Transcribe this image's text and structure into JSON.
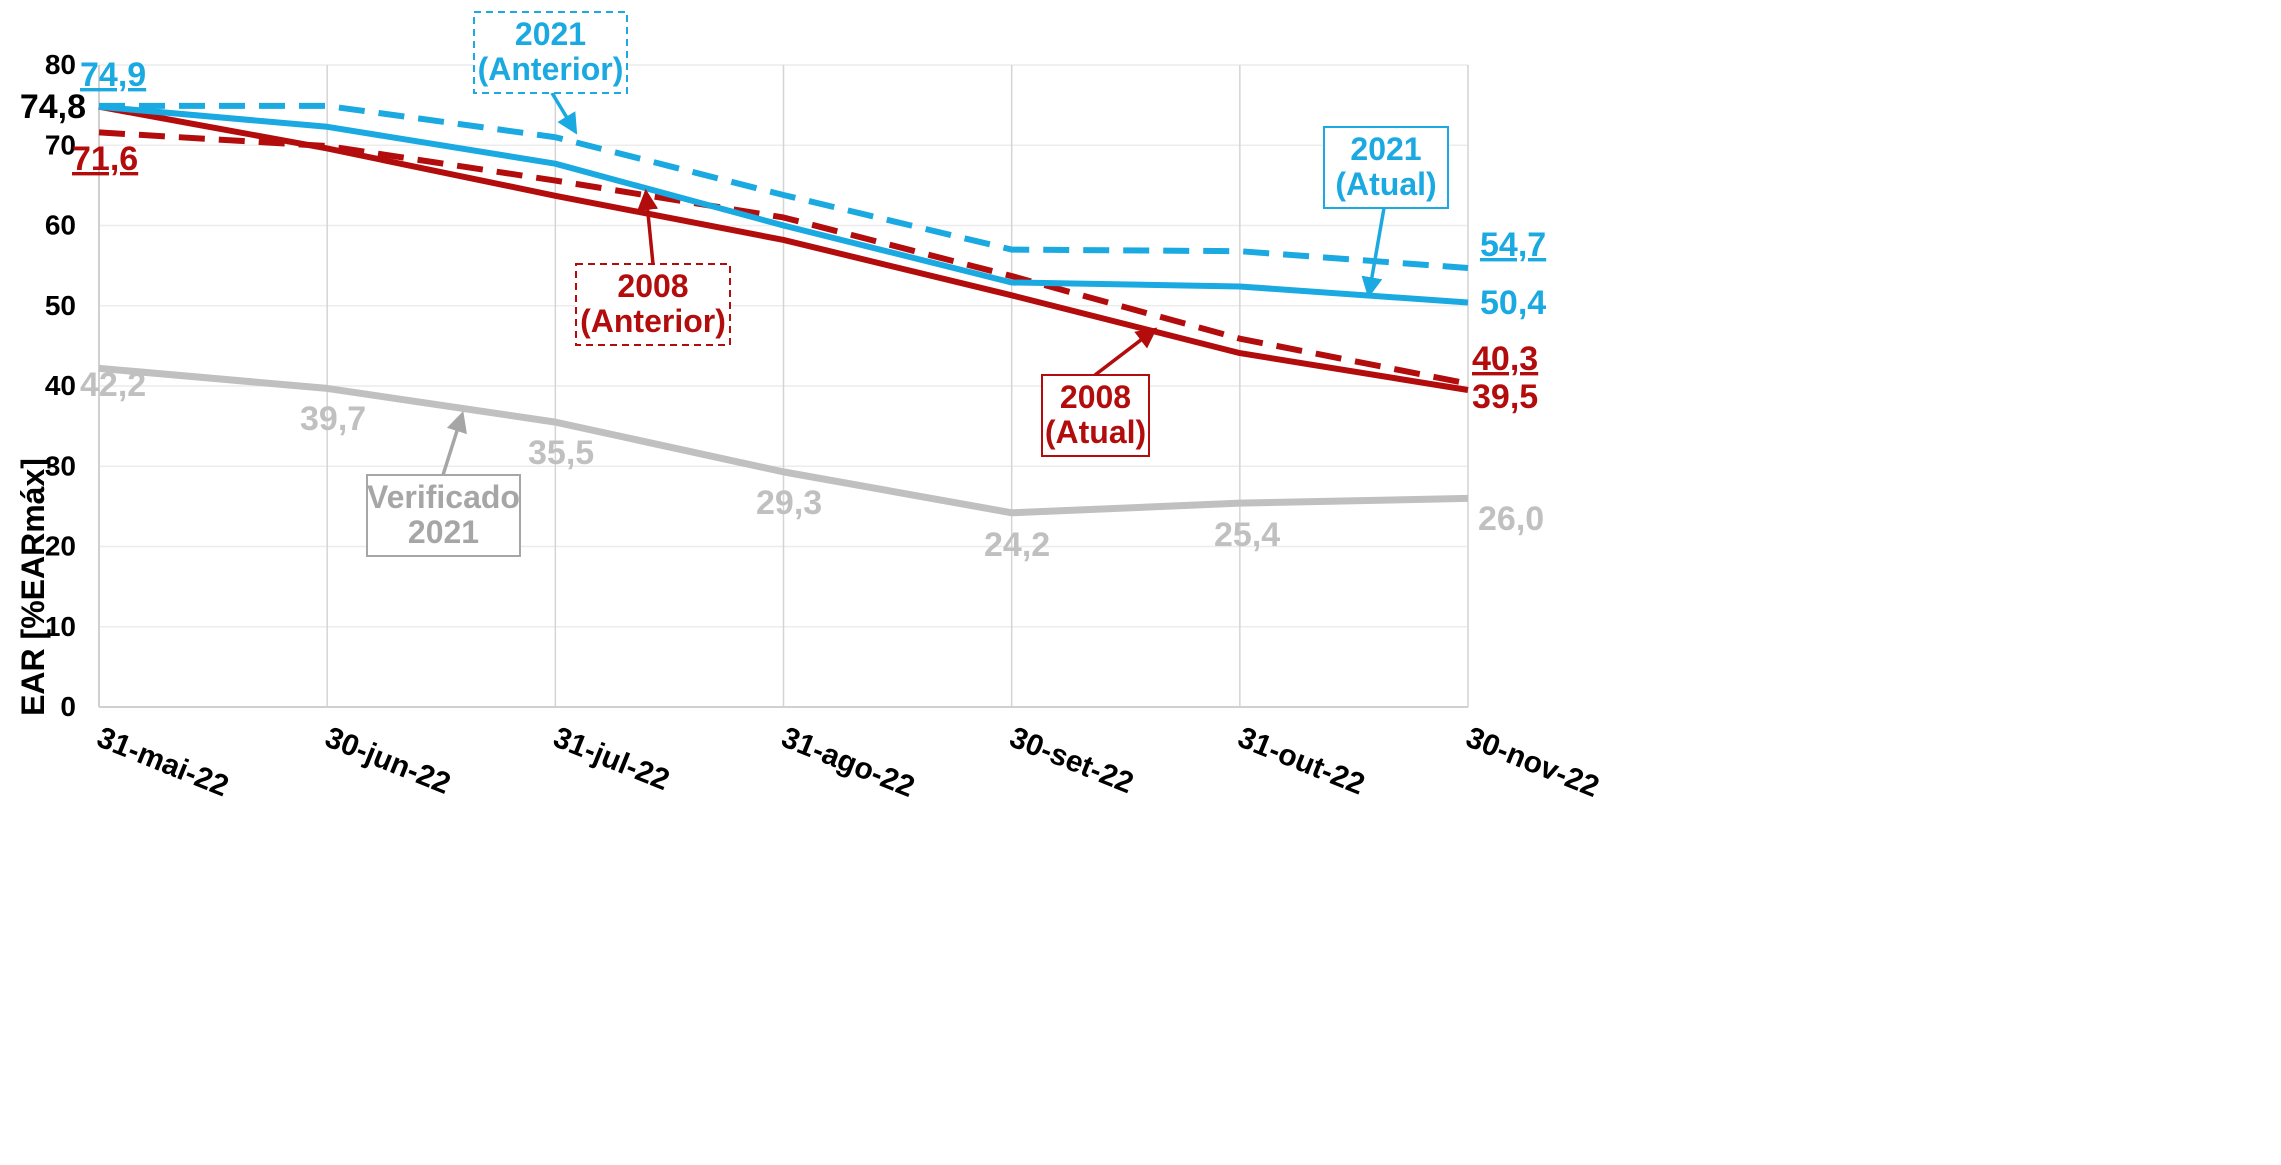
{
  "chart_data": {
    "type": "line",
    "ylabel": "EAR [%EARmáx]",
    "ylim": [
      0,
      80
    ],
    "yticks": [
      "0",
      "10",
      "20",
      "30",
      "40",
      "50",
      "60",
      "70",
      "80"
    ],
    "categories": [
      "31-mai-22",
      "30-jun-22",
      "31-jul-22",
      "31-ago-22",
      "30-set-22",
      "31-out-22",
      "30-nov-22"
    ],
    "grid": true,
    "series": [
      {
        "key": "a2021_anterior",
        "values": [
          74.9,
          74.9,
          71.0,
          63.8,
          57.0,
          56.8,
          54.7
        ],
        "color": "#1aa9e0",
        "style": "dashed"
      },
      {
        "key": "a2021_atual",
        "values": [
          74.8,
          72.3,
          67.7,
          60.0,
          52.9,
          52.4,
          50.4
        ],
        "color": "#1aa9e0",
        "style": "solid"
      },
      {
        "key": "a2008_anterior",
        "values": [
          71.6,
          69.9,
          65.6,
          61.0,
          53.7,
          45.9,
          40.3
        ],
        "color": "#b30c0c",
        "style": "dashed"
      },
      {
        "key": "a2008_atual",
        "values": [
          74.8,
          69.6,
          63.7,
          58.2,
          51.3,
          44.1,
          39.5
        ],
        "color": "#b30c0c",
        "style": "solid"
      },
      {
        "key": "verificado_2021",
        "values": [
          42.2,
          39.7,
          35.5,
          29.3,
          24.2,
          25.4,
          26.0
        ],
        "color": "#c0c0c0",
        "style": "solid"
      }
    ],
    "data_labels": [
      {
        "text": "74,9",
        "color": "#1aa9e0",
        "underline": true
      },
      {
        "text": "74,8",
        "color": "#000000",
        "underline": false
      },
      {
        "text": "71,6",
        "color": "#b30c0c",
        "underline": true
      },
      {
        "text": "54,7",
        "color": "#1aa9e0",
        "underline": true
      },
      {
        "text": "50,4",
        "color": "#1aa9e0",
        "underline": false
      },
      {
        "text": "40,3",
        "color": "#b30c0c",
        "underline": true
      },
      {
        "text": "39,5",
        "color": "#b30c0c",
        "underline": false
      },
      {
        "text": "42,2",
        "color": "#c0c0c0",
        "underline": false
      },
      {
        "text": "39,7",
        "color": "#c0c0c0",
        "underline": false
      },
      {
        "text": "35,5",
        "color": "#c0c0c0",
        "underline": false
      },
      {
        "text": "29,3",
        "color": "#c0c0c0",
        "underline": false
      },
      {
        "text": "24,2",
        "color": "#c0c0c0",
        "underline": false
      },
      {
        "text": "25,4",
        "color": "#c0c0c0",
        "underline": false
      },
      {
        "text": "26,0",
        "color": "#c0c0c0",
        "underline": false
      }
    ],
    "callouts": [
      {
        "line1": "2021",
        "line2": "(Anterior)",
        "color": "#1aa9e0",
        "border": "dashed"
      },
      {
        "line1": "2021",
        "line2": "(Atual)",
        "color": "#1aa9e0",
        "border": "solid"
      },
      {
        "line1": "2008",
        "line2": "(Anterior)",
        "color": "#b30c0c",
        "border": "dashed"
      },
      {
        "line1": "2008",
        "line2": "(Atual)",
        "color": "#b30c0c",
        "border": "solid"
      },
      {
        "line1": "Verificado",
        "line2": "2021",
        "color": "#a6a6a6",
        "border": "solid"
      }
    ]
  }
}
